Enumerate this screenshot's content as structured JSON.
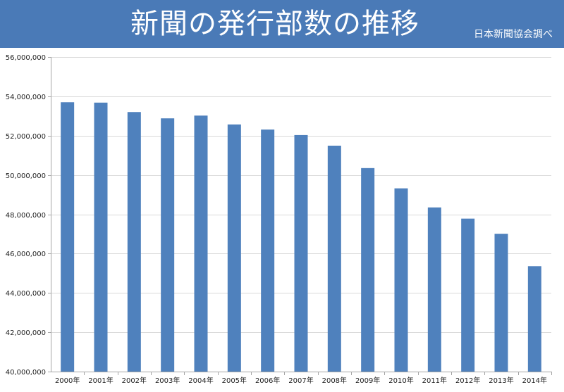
{
  "header": {
    "title": "新聞の発行部数の推移",
    "source": "日本新聞協会調べ"
  },
  "colors": {
    "header_bg": "#4a7ab7",
    "bar": "#4f81bd",
    "grid": "#d9d9d9",
    "axis": "#a6a6a6"
  },
  "chart_data": {
    "type": "bar",
    "title": "新聞の発行部数の推移",
    "xlabel": "",
    "ylabel": "",
    "ylim": [
      40000000,
      56000000
    ],
    "grid": true,
    "yticks": [
      40000000,
      42000000,
      44000000,
      46000000,
      48000000,
      50000000,
      52000000,
      54000000,
      56000000
    ],
    "ytick_labels": [
      "40,000,000",
      "42,000,000",
      "44,000,000",
      "46,000,000",
      "48,000,000",
      "50,000,000",
      "52,000,000",
      "54,000,000",
      "56,000,000"
    ],
    "categories": [
      "2000年",
      "2001年",
      "2002年",
      "2003年",
      "2004年",
      "2005年",
      "2006年",
      "2007年",
      "2008年",
      "2009年",
      "2010年",
      "2011年",
      "2012年",
      "2013年",
      "2014年"
    ],
    "values": [
      53700000,
      53680000,
      53200000,
      52880000,
      53020000,
      52570000,
      52310000,
      52030000,
      51490000,
      50350000,
      49320000,
      48350000,
      47780000,
      47010000,
      45360000
    ]
  }
}
